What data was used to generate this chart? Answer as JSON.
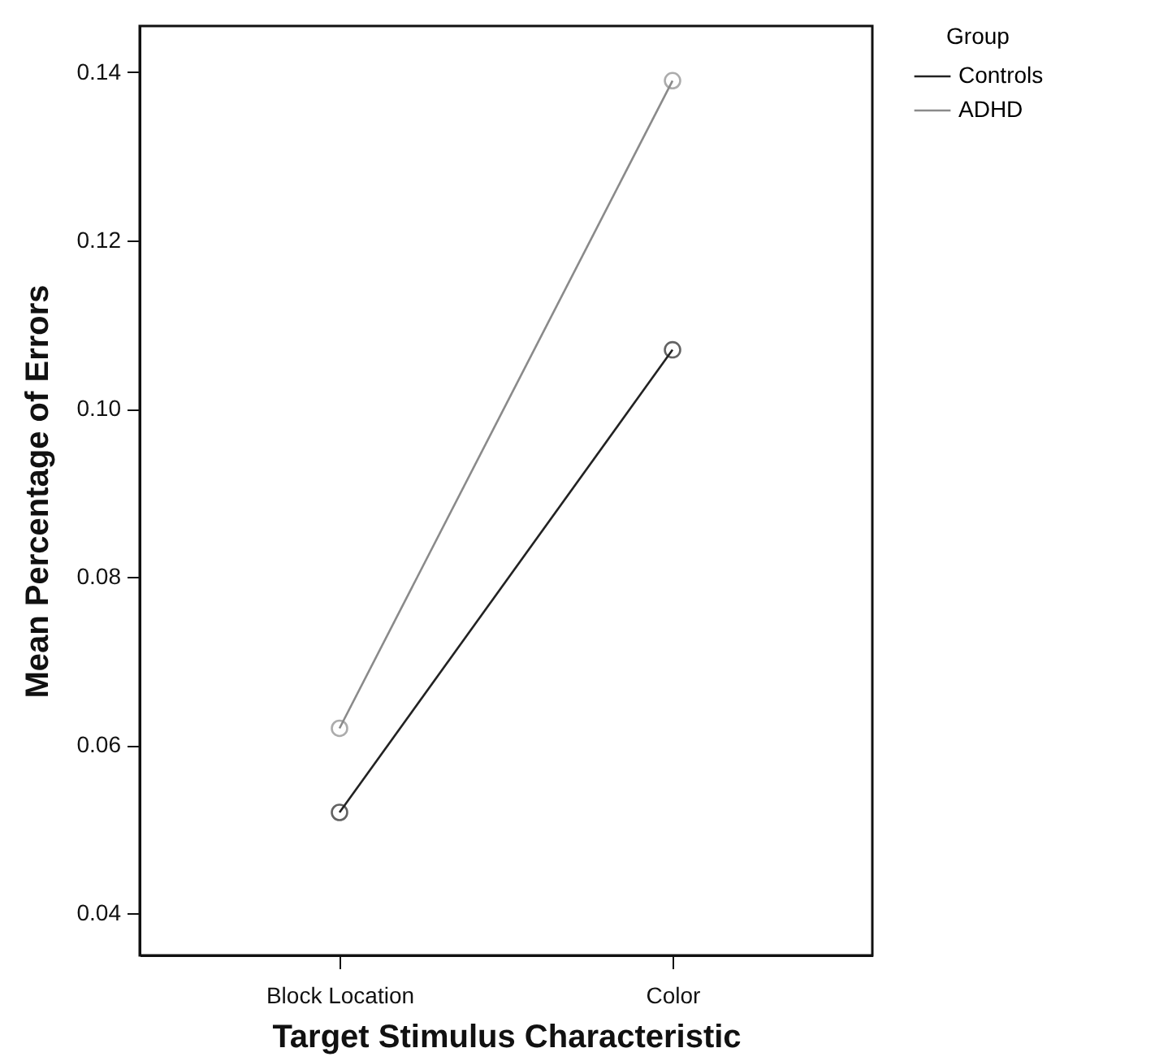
{
  "chart_data": {
    "type": "line",
    "xlabel": "Target Stimulus Characteristic",
    "ylabel": "Mean Percentage of Errors",
    "legend_title": "Group",
    "categories": [
      "Block Location",
      "Color"
    ],
    "series": [
      {
        "name": "Controls",
        "color": "#222222",
        "values": [
          0.052,
          0.107
        ]
      },
      {
        "name": "ADHD",
        "color": "#8a8a8a",
        "values": [
          0.062,
          0.139
        ]
      }
    ],
    "ylim": [
      0.035,
      0.1455
    ],
    "yticks": [
      {
        "value": 0.04,
        "label": "0.04"
      },
      {
        "value": 0.06,
        "label": "0.06"
      },
      {
        "value": 0.08,
        "label": "0.08"
      },
      {
        "value": 0.1,
        "label": "0.10"
      },
      {
        "value": 0.12,
        "label": "0.12"
      },
      {
        "value": 0.14,
        "label": "0.14"
      }
    ],
    "grid": false,
    "legend": "top right",
    "marker": "circle",
    "line_style": "solid"
  }
}
